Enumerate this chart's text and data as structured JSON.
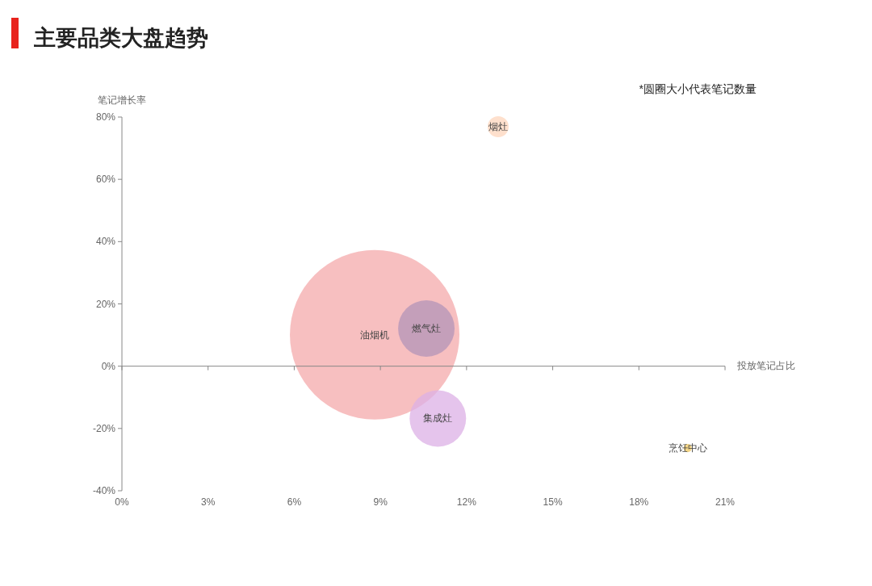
{
  "chart_data": {
    "type": "bubble",
    "title": "主要品类大盘趋势",
    "xlabel": "投放笔记占比",
    "ylabel": "笔记增长率",
    "annotations": [
      "*圆圈大小代表笔记数量"
    ],
    "series": [
      {
        "name": "油烟机",
        "color": "#f4a9ab",
        "x": [
          8.8
        ],
        "values": [
          10.1
        ],
        "sizes": [
          1
        ]
      },
      {
        "name": "燃气灶",
        "color": "#b394b8",
        "x": [
          10.6
        ],
        "values": [
          12.1
        ],
        "sizes": [
          0.111
        ]
      },
      {
        "name": "集成灶",
        "color": "#dcb0e6",
        "x": [
          11.0
        ],
        "values": [
          -16.8
        ],
        "sizes": [
          0.111
        ]
      },
      {
        "name": "烟灶",
        "color": "#fdd6bc",
        "x": [
          13.1
        ],
        "values": [
          76.9
        ],
        "sizes": [
          0.0153
        ]
      },
      {
        "name": "烹饪中心",
        "color": "#f0c860",
        "x": [
          19.7
        ],
        "values": [
          -26.3
        ],
        "sizes": [
          0.0023
        ]
      }
    ],
    "xlim": [
      0,
      21
    ],
    "xticks": [
      {
        "value": 0,
        "label": "0%"
      },
      {
        "value": 3,
        "label": "3%"
      },
      {
        "value": 6,
        "label": "6%"
      },
      {
        "value": 9,
        "label": "9%"
      },
      {
        "value": 12,
        "label": "12%"
      },
      {
        "value": 15,
        "label": "15%"
      },
      {
        "value": 18,
        "label": "18%"
      },
      {
        "value": 21,
        "label": "21%"
      }
    ],
    "ylim": [
      -40,
      80
    ],
    "yticks": [
      {
        "value": -40,
        "label": "-40%"
      },
      {
        "value": -20,
        "label": "-20%"
      },
      {
        "value": 0,
        "label": "0%"
      },
      {
        "value": 20,
        "label": "20%"
      },
      {
        "value": 40,
        "label": "40%"
      },
      {
        "value": 60,
        "label": "60%"
      },
      {
        "value": 80,
        "label": "80%"
      }
    ]
  }
}
